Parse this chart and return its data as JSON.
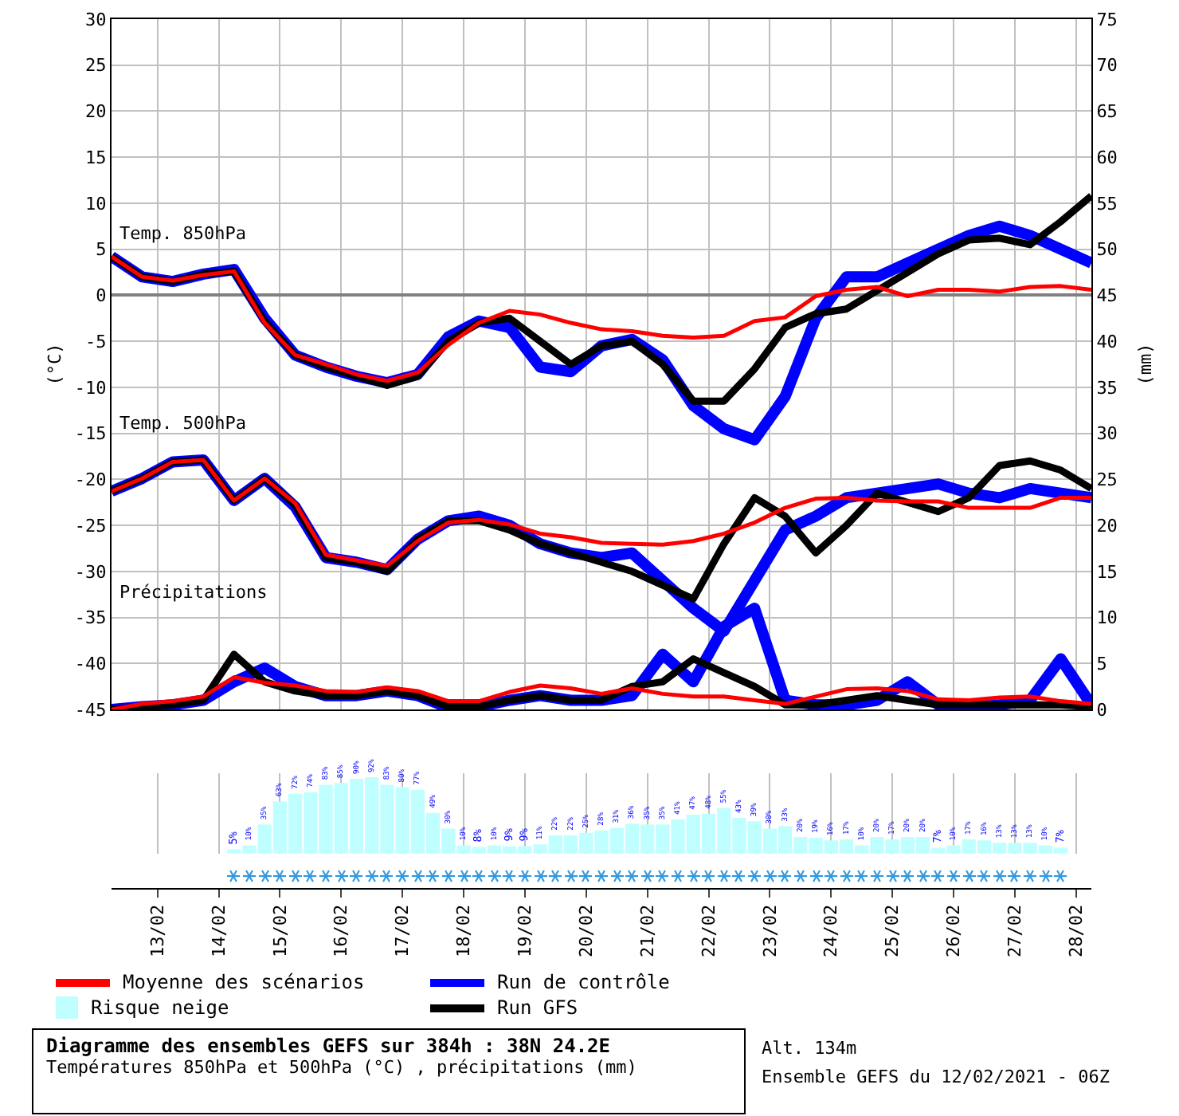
{
  "chart_data": [
    {
      "type": "line",
      "title": "Diagramme des ensembles GEFS sur 384h : 38N 24.2E",
      "subtitle": "Températures 850hPa et 500hPa (°C) , précipitations (mm)",
      "ylabel": "(°C)",
      "y2label": "(mm)",
      "x": [
        "2021-02-12T06:00",
        "2021-02-12T18:00",
        "2021-02-13T06:00",
        "2021-02-13T18:00",
        "2021-02-14T06:00",
        "2021-02-14T18:00",
        "2021-02-15T06:00",
        "2021-02-15T18:00",
        "2021-02-16T06:00",
        "2021-02-16T18:00",
        "2021-02-17T06:00",
        "2021-02-17T18:00",
        "2021-02-18T06:00",
        "2021-02-18T18:00",
        "2021-02-19T06:00",
        "2021-02-19T18:00",
        "2021-02-20T06:00",
        "2021-02-20T18:00",
        "2021-02-21T06:00",
        "2021-02-21T18:00",
        "2021-02-22T06:00",
        "2021-02-22T18:00",
        "2021-02-23T06:00",
        "2021-02-23T18:00",
        "2021-02-24T06:00",
        "2021-02-24T18:00",
        "2021-02-25T06:00",
        "2021-02-25T18:00",
        "2021-02-26T06:00",
        "2021-02-26T18:00",
        "2021-02-27T06:00",
        "2021-02-27T18:00",
        "2021-02-28T06:00"
      ],
      "xlim": [
        "2021-02-12T06:00",
        "2021-02-28T06:00"
      ],
      "xticks": [
        {
          "value": "2021-02-13",
          "label": null
        },
        {
          "value": "2021-02-14",
          "label": null
        },
        {
          "value": "2021-02-15",
          "label": null
        },
        {
          "value": "2021-02-16",
          "label": null
        },
        {
          "value": "2021-02-17",
          "label": null
        },
        {
          "value": "2021-02-18",
          "label": null
        },
        {
          "value": "2021-02-19",
          "label": null
        },
        {
          "value": "2021-02-20",
          "label": null
        },
        {
          "value": "2021-02-21",
          "label": null
        },
        {
          "value": "2021-02-22",
          "label": null
        },
        {
          "value": "2021-02-23",
          "label": null
        },
        {
          "value": "2021-02-24",
          "label": null
        },
        {
          "value": "2021-02-25",
          "label": null
        },
        {
          "value": "2021-02-26",
          "label": null
        },
        {
          "value": "2021-02-27",
          "label": null
        },
        {
          "value": "2021-02-28",
          "label": null
        }
      ],
      "ylim": [
        -45,
        30
      ],
      "yticks": [
        -45,
        -40,
        -35,
        -30,
        -25,
        -20,
        -15,
        -10,
        -5,
        0,
        5,
        10,
        15,
        20,
        25,
        30
      ],
      "y2lim": [
        0,
        75
      ],
      "y2ticks": [
        0,
        5,
        10,
        15,
        20,
        25,
        30,
        35,
        40,
        45,
        50,
        55,
        60,
        65,
        70,
        75
      ],
      "grid": true,
      "legend": "bottom",
      "tick_labels": "y",
      "series": [
        {
          "name": "Moyenne des scénarios",
          "color": "#ff0000",
          "values": [
            4.2,
            2.0,
            1.6,
            2.2,
            2.6,
            -3.0,
            -6.5,
            -7.5,
            -8.6,
            -9.3,
            -8.4,
            -5.4,
            -3.0,
            -1.7,
            -2.1,
            -3.0,
            -3.7,
            -3.9,
            -4.4,
            -4.6,
            -4.4,
            -2.8,
            -2.4,
            -0.1,
            0.6,
            0.9,
            -0.1,
            0.6,
            0.6,
            0.4,
            0.9,
            1.0,
            0.6
          ]
        },
        {
          "name": "Run de contrôle",
          "color": "#0000ff",
          "values": [
            4.2,
            2.0,
            1.5,
            2.3,
            2.8,
            -2.5,
            -6.5,
            -7.8,
            -8.8,
            -9.5,
            -8.6,
            -4.5,
            -2.8,
            -3.5,
            -7.8,
            -8.3,
            -5.5,
            -4.8,
            -7,
            -12,
            -14.5,
            -15.7,
            -11,
            -2.5,
            2,
            2,
            3.5,
            5,
            6.5,
            7.5,
            6.5,
            5,
            3.5
          ]
        },
        {
          "name": "Run GFS",
          "color": "#000000",
          "values": [
            4.2,
            2.0,
            1.5,
            2.3,
            2.6,
            -2.8,
            -6.5,
            -7.8,
            -8.8,
            -9.8,
            -8.8,
            -5,
            -3,
            -2.5,
            -5,
            -7.5,
            -5.5,
            -5,
            -7.5,
            -11.5,
            -11.5,
            -8,
            -3.5,
            -2,
            -1.5,
            0.5,
            2.5,
            4.5,
            6,
            6.2,
            5.5,
            8,
            10.8
          ]
        },
        {
          "color": "#ff0000",
          "values": [
            -21.3,
            -19.9,
            -18.1,
            -17.9,
            -22.3,
            -19.9,
            -22.6,
            -28.2,
            -28.8,
            -29.4,
            -26.7,
            -24.7,
            -24.4,
            -24.9,
            -25.9,
            -26.3,
            -26.9,
            -27,
            -27.1,
            -26.7,
            -25.9,
            -24.7,
            -23.1,
            -22.1,
            -22.0,
            -22.3,
            -22.4,
            -22.4,
            -23.1,
            -23.1,
            -23.1,
            -22.0,
            -22.0
          ]
        },
        {
          "color": "#0000ff",
          "values": [
            -21.3,
            -19.9,
            -18.1,
            -17.9,
            -22.3,
            -19.9,
            -23,
            -28.5,
            -29,
            -29.8,
            -26.5,
            -24.5,
            -24,
            -25,
            -27,
            -28,
            -28.5,
            -28,
            -31,
            -34,
            -36.5,
            -31,
            -25.5,
            -24,
            -22,
            -21.5,
            -21,
            -20.5,
            -21.5,
            -22,
            -21,
            -21.5,
            -22
          ]
        },
        {
          "color": "#000000",
          "values": [
            -21.3,
            -19.9,
            -18.1,
            -17.9,
            -22.3,
            -19.9,
            -22.8,
            -28.5,
            -29,
            -30,
            -26.5,
            -24.5,
            -24.5,
            -25.5,
            -27,
            -28,
            -29,
            -30,
            -31.5,
            -33,
            -27,
            -22,
            -24,
            -28,
            -25,
            -21.5,
            -22.5,
            -23.5,
            -22,
            -18.5,
            -18,
            -19,
            -21
          ]
        },
        {
          "color": "#ff0000",
          "axis": "y2",
          "values": [
            0,
            0.6,
            0.9,
            1.4,
            3.5,
            2.9,
            2.6,
            2.0,
            1.9,
            2.4,
            2.0,
            0.9,
            0.9,
            1.9,
            2.6,
            2.3,
            1.7,
            2.3,
            1.7,
            1.4,
            1.4,
            1.0,
            0.6,
            1.4,
            2.2,
            2.3,
            2.0,
            1.1,
            1.0,
            1.3,
            1.4,
            0.9,
            0.6
          ]
        },
        {
          "color": "#0000ff",
          "axis": "y2",
          "values": [
            0,
            0.3,
            0.5,
            1,
            3,
            4.5,
            2.5,
            1.5,
            1.5,
            2,
            1.5,
            0.2,
            0.3,
            1,
            1.5,
            1,
            1,
            1.5,
            6,
            3,
            9,
            11,
            1,
            0.5,
            0.5,
            1,
            3,
            0.5,
            0.3,
            0.5,
            1,
            5.5,
            0.5
          ]
        },
        {
          "color": "#000000",
          "axis": "y2",
          "values": [
            0,
            0.3,
            0.5,
            1,
            6,
            3,
            2,
            1.5,
            1.5,
            2,
            1.5,
            0.3,
            0.3,
            1,
            1.5,
            1,
            1,
            2.5,
            3,
            5.5,
            4,
            2.5,
            0.5,
            0.5,
            1,
            1.5,
            1,
            0.5,
            0.5,
            0.5,
            0.5,
            0.5,
            0.3
          ]
        }
      ],
      "annotations": [
        "Temp. 850hPa",
        "Temp. 500hPa",
        "Précipitations",
        "Alt. 134m",
        "Ensemble GEFS du 12/02/2021 - 06Z"
      ]
    },
    {
      "type": "bar",
      "legend": "bottom",
      "tick_labels": "x",
      "grid": "x",
      "x": [
        "2021-02-14T06:00",
        "2021-02-14T12:00",
        "2021-02-14T18:00",
        "2021-02-15T00:00",
        "2021-02-15T06:00",
        "2021-02-15T12:00",
        "2021-02-15T18:00",
        "2021-02-16T00:00",
        "2021-02-16T06:00",
        "2021-02-16T12:00",
        "2021-02-16T18:00",
        "2021-02-17T00:00",
        "2021-02-17T06:00",
        "2021-02-17T12:00",
        "2021-02-17T18:00",
        "2021-02-18T00:00",
        "2021-02-18T06:00",
        "2021-02-18T12:00",
        "2021-02-18T18:00",
        "2021-02-19T00:00",
        "2021-02-19T06:00",
        "2021-02-19T12:00",
        "2021-02-19T18:00",
        "2021-02-20T00:00",
        "2021-02-20T06:00",
        "2021-02-20T12:00",
        "2021-02-20T18:00",
        "2021-02-21T00:00",
        "2021-02-21T06:00",
        "2021-02-21T12:00",
        "2021-02-21T18:00",
        "2021-02-22T00:00",
        "2021-02-22T06:00",
        "2021-02-22T12:00",
        "2021-02-22T18:00",
        "2021-02-23T00:00",
        "2021-02-23T06:00",
        "2021-02-23T12:00",
        "2021-02-23T18:00",
        "2021-02-24T00:00",
        "2021-02-24T06:00",
        "2021-02-24T12:00",
        "2021-02-24T18:00",
        "2021-02-25T00:00",
        "2021-02-25T06:00",
        "2021-02-25T12:00",
        "2021-02-25T18:00",
        "2021-02-26T00:00",
        "2021-02-26T06:00",
        "2021-02-26T12:00",
        "2021-02-26T18:00",
        "2021-02-27T00:00",
        "2021-02-27T06:00",
        "2021-02-27T12:00",
        "2021-02-27T18:00"
      ],
      "xlim": [
        "2021-02-12T06:00",
        "2021-02-28T06:00"
      ],
      "xticks": [
        {
          "value": "2021-02-13",
          "label": "13/02"
        },
        {
          "value": "2021-02-14",
          "label": "14/02"
        },
        {
          "value": "2021-02-15",
          "label": "15/02"
        },
        {
          "value": "2021-02-16",
          "label": "16/02"
        },
        {
          "value": "2021-02-17",
          "label": "17/02"
        },
        {
          "value": "2021-02-18",
          "label": "18/02"
        },
        {
          "value": "2021-02-19",
          "label": "19/02"
        },
        {
          "value": "2021-02-20",
          "label": "20/02"
        },
        {
          "value": "2021-02-21",
          "label": "21/02"
        },
        {
          "value": "2021-02-22",
          "label": "22/02"
        },
        {
          "value": "2021-02-23",
          "label": "23/02"
        },
        {
          "value": "2021-02-24",
          "label": "24/02"
        },
        {
          "value": "2021-02-25",
          "label": "25/02"
        },
        {
          "value": "2021-02-26",
          "label": "26/02"
        },
        {
          "value": "2021-02-27",
          "label": "27/02"
        },
        {
          "value": "2021-02-28",
          "label": "28/02"
        }
      ],
      "series": [
        {
          "name": "Risque neige",
          "color": "#c0ffff",
          "values": [
            5,
            10,
            35,
            63,
            72,
            74,
            83,
            85,
            90,
            92,
            83,
            80,
            77,
            49,
            30,
            10,
            8,
            10,
            9,
            9,
            11,
            22,
            22,
            25,
            28,
            31,
            36,
            35,
            35,
            41,
            47,
            48,
            55,
            43,
            39,
            30,
            33,
            20,
            19,
            16,
            17,
            10,
            20,
            17,
            20,
            20,
            7,
            10,
            17,
            16,
            13,
            13,
            13,
            10,
            7
          ],
          "value_labels": [
            "5%",
            "10%",
            "35%",
            "63%",
            "72%",
            "74%",
            "83%",
            "85%",
            "90%",
            "92%",
            "83%",
            "80%",
            "77%",
            "49%",
            "30%",
            "10%",
            "8%",
            "10%",
            "9%",
            "9%",
            "11%",
            "22%",
            "22%",
            "25%",
            "28%",
            "31%",
            "36%",
            "35%",
            "35%",
            "41%",
            "47%",
            "48%",
            "55%",
            "43%",
            "39%",
            "30%",
            "33%",
            "20%",
            "19%",
            "16%",
            "17%",
            "10%",
            "20%",
            "17%",
            "20%",
            "20%",
            "7%",
            "10%",
            "17%",
            "16%",
            "13%",
            "13%",
            "13%",
            "10%",
            "7%"
          ]
        }
      ]
    }
  ]
}
